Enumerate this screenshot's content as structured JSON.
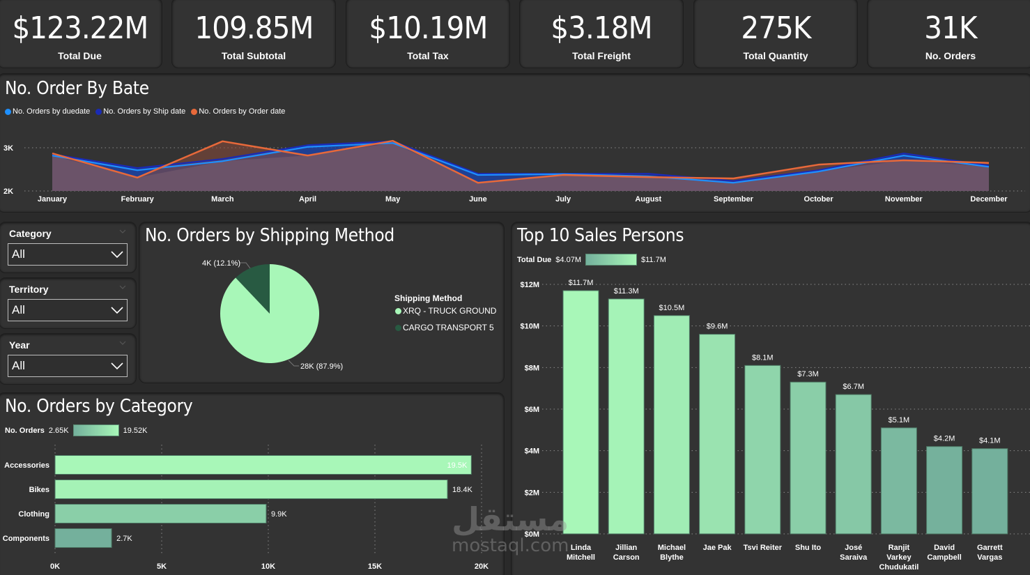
{
  "kpis": [
    {
      "value": "$123.22M",
      "label": "Total Due"
    },
    {
      "value": "109.85M",
      "label": "Total Subtotal"
    },
    {
      "value": "$10.19M",
      "label": "Total Tax"
    },
    {
      "value": "$3.18M",
      "label": "Total Freight"
    },
    {
      "value": "275K",
      "label": "Total Quantity"
    },
    {
      "value": "31K",
      "label": "No. Orders"
    }
  ],
  "slicers": [
    {
      "label": "Category",
      "value": "All"
    },
    {
      "label": "Territory",
      "value": "All"
    },
    {
      "label": "Year",
      "value": "All"
    }
  ],
  "watermark": {
    "arabic": "مستقل",
    "latin": "mostaql.com"
  },
  "colors": {
    "background": "#2a2a2a",
    "card": "#333333",
    "duedate": "#1e90ff",
    "shipdate": "#1a2bb5",
    "orderdate": "#e8693a",
    "area_fill": "#6b5369",
    "green_light": "#a8f7b8",
    "green_dark": "#74b09c",
    "cargo": "#285a42"
  },
  "chart_data": [
    {
      "id": "orders-by-date",
      "type": "area",
      "title": "No. Order By Bate",
      "x": [
        "January",
        "February",
        "March",
        "April",
        "May",
        "June",
        "July",
        "August",
        "September",
        "October",
        "November",
        "December"
      ],
      "yticks": [
        "2K",
        "3K"
      ],
      "ylim": [
        2000,
        3000
      ],
      "grid": true,
      "legend_position": "top-left",
      "series": [
        {
          "name": "No. Orders by duedate",
          "color": "#1e90ff",
          "values": [
            2820,
            2480,
            2690,
            3020,
            3110,
            2370,
            2390,
            2340,
            2190,
            2450,
            2820,
            2560
          ]
        },
        {
          "name": "No. Orders by Ship date",
          "color": "#1a2bb5",
          "values": [
            2850,
            2530,
            2740,
            3060,
            3150,
            2400,
            2400,
            2400,
            2230,
            2480,
            2870,
            2590
          ]
        },
        {
          "name": "No. Orders by Order date",
          "color": "#e8693a",
          "values": [
            2870,
            2310,
            3150,
            2820,
            3160,
            2190,
            2370,
            2320,
            2290,
            2610,
            2710,
            2650
          ]
        }
      ]
    },
    {
      "id": "orders-by-shipping",
      "type": "pie",
      "title": "No. Orders by Shipping Method",
      "legend_title": "Shipping Method",
      "legend_position": "right",
      "slices": [
        {
          "name": "XRQ - TRUCK GROUND",
          "value": 28000,
          "percent": 87.9,
          "label": "28K (87.9%)",
          "color": "#a8f7b8"
        },
        {
          "name": "CARGO TRANSPORT 5",
          "value": 4000,
          "percent": 12.1,
          "label": "4K (12.1%)",
          "color": "#285a42"
        }
      ]
    },
    {
      "id": "orders-by-category",
      "type": "bar",
      "orientation": "horizontal",
      "title": "No. Orders by Category",
      "gradient_legend": {
        "label": "No. Orders",
        "min": "2.65K",
        "max": "19.52K"
      },
      "categories": [
        "Accessories",
        "Bikes",
        "Clothing",
        "Components"
      ],
      "values": [
        19520,
        18400,
        9900,
        2650
      ],
      "data_labels": [
        "19.5K",
        "18.4K",
        "9.9K",
        "2.7K"
      ],
      "xticks": [
        "0K",
        "5K",
        "10K",
        "15K",
        "20K"
      ],
      "xlim": [
        0,
        20000
      ],
      "grid": true
    },
    {
      "id": "top-sales-persons",
      "type": "bar",
      "orientation": "vertical",
      "title": "Top 10 Sales Persons",
      "gradient_legend": {
        "label": "Total Due",
        "min": "$4.07M",
        "max": "$11.7M"
      },
      "categories": [
        "Linda Mitchell",
        "Jillian Carson",
        "Michael Blythe",
        "Jae Pak",
        "Tsvi Reiter",
        "Shu Ito",
        "José Saraiva",
        "Ranjit Varkey Chudukatil",
        "David Campbell",
        "Garrett Vargas"
      ],
      "values": [
        11.7,
        11.3,
        10.5,
        9.6,
        8.1,
        7.3,
        6.7,
        5.1,
        4.2,
        4.1
      ],
      "data_labels": [
        "$11.7M",
        "$11.3M",
        "$10.5M",
        "$9.6M",
        "$8.1M",
        "$7.3M",
        "$6.7M",
        "$5.1M",
        "$4.2M",
        "$4.1M"
      ],
      "yticks": [
        "$0M",
        "$2M",
        "$4M",
        "$6M",
        "$8M",
        "$10M",
        "$12M"
      ],
      "ylim": [
        0,
        12
      ],
      "ylabel_unit": "$M",
      "grid": true
    }
  ]
}
